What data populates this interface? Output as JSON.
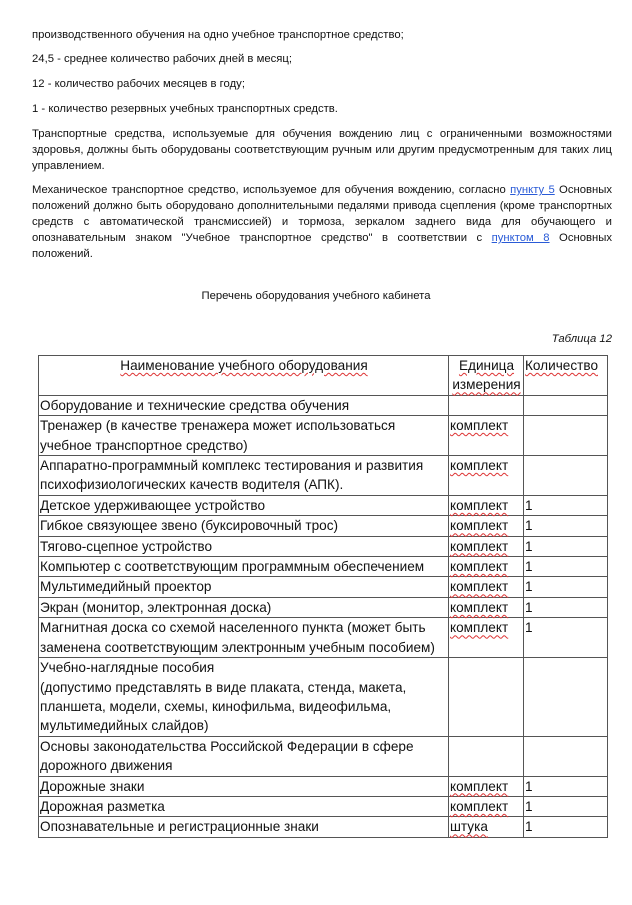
{
  "lines": [
    "производственного обучения на одно учебное транспортное средство;",
    "24,5 - среднее количество рабочих дней в месяц;",
    "12 - количество рабочих месяцев в году;",
    "1 - количество резервных учебных транспортных средств."
  ],
  "para1": "Транспортные средства, используемые для обучения вождению лиц с ограниченными возможностями здоровья, должны быть оборудованы соответствующим ручным или другим предусмотренным для таких лиц управлением.",
  "para2": {
    "t1": "Механическое транспортное средство, используемое для обучения вождению, согласно ",
    "link1": "пункту 5",
    "t2": " Основных положений должно быть оборудовано дополнительными педалями привода сцепления (кроме транспортных средств с автоматической трансмиссией) и тормоза, зеркалом заднего вида для обучающего и опознавательным знаком \"Учебное транспортное средство\" в соответствии с ",
    "link2": "пунктом 8",
    "t3": " Основных положений."
  },
  "title": "Перечень оборудования учебного кабинета",
  "caption": "Таблица 12",
  "table": {
    "headers": [
      "Наименование учебного оборудования",
      "Единица измерения",
      "Количество"
    ],
    "rows": [
      [
        "Оборудование и технические средства обучения",
        "",
        ""
      ],
      [
        "Тренажер (в качестве тренажера может использоваться учебное транспортное средство)",
        "комплект",
        ""
      ],
      [
        "Аппаратно-программный комплекс тестирования и развития психофизиологических качеств водителя (АПК).",
        "комплект",
        ""
      ],
      [
        "Детское удерживающее устройство",
        "комплект",
        "1"
      ],
      [
        "Гибкое связующее звено (буксировочный трос)",
        "комплект",
        "1"
      ],
      [
        "Тягово-сцепное устройство",
        "комплект",
        "1"
      ],
      [
        "Компьютер с соответствующим программным обеспечением",
        "комплект",
        "1"
      ],
      [
        "Мультимедийный проектор",
        "комплект",
        "1"
      ],
      [
        "Экран (монитор, электронная доска)",
        "комплект",
        "1"
      ],
      [
        "Магнитная доска со схемой населенного пункта (может быть заменена соответствующим электронным учебным пособием)",
        "комплект",
        "1"
      ],
      [
        "Учебно-наглядные пособия\n(допустимо представлять в виде плаката, стенда, макета, планшета, модели, схемы, кинофильма, видеофильма, мультимедийных слайдов)",
        "",
        ""
      ],
      [
        "Основы законодательства Российской Федерации в сфере дорожного движения",
        "",
        ""
      ],
      [
        "Дорожные знаки",
        "комплект",
        "1"
      ],
      [
        "Дорожная разметка",
        "комплект",
        "1"
      ],
      [
        "Опознавательные и регистрационные знаки",
        "штука",
        "1"
      ]
    ]
  }
}
